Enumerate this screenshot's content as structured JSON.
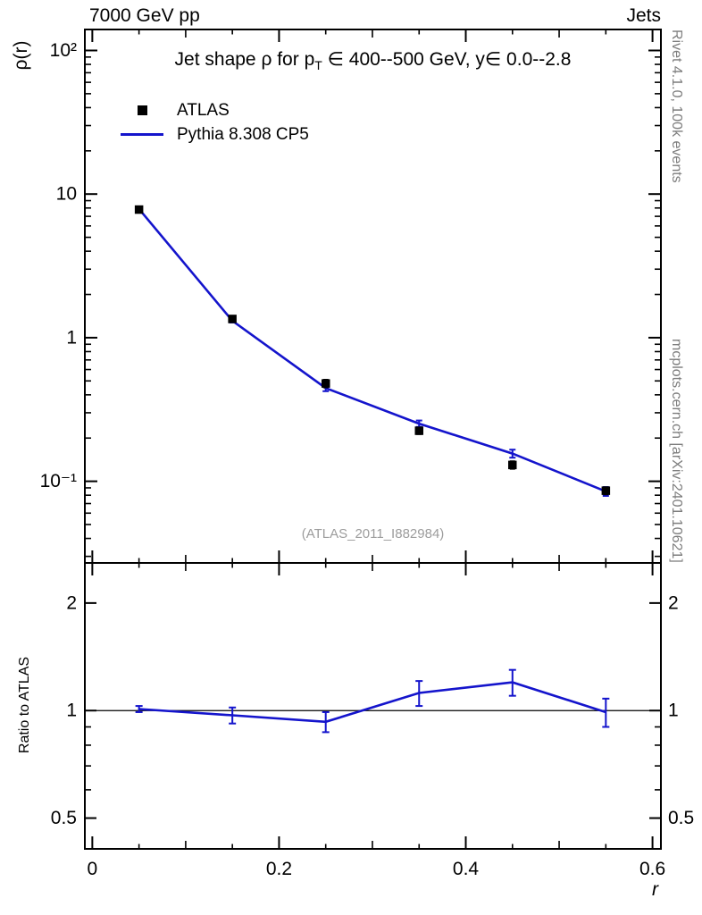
{
  "labels": {
    "top_left": "7000 GeV pp",
    "top_right": "Jets",
    "y_axis": "ρ(r)",
    "title_pre": "Jet shape ρ for p",
    "title_sub": "T",
    "title_post": " ∈ 400--500 GeV, y∈ 0.0--2.8",
    "watermark": "(ATLAS_2011_I882984)",
    "rivet_caption": "Rivet 4.1.0,  100k events",
    "mcplots_caption": "mcplots.cern.ch [arXiv:2401.10621]",
    "ratio_y_axis": "Ratio to ATLAS",
    "x_axis": "r"
  },
  "legend": [
    {
      "label": "ATLAS",
      "type": "marker",
      "color": "#000000"
    },
    {
      "label": "Pythia 8.308 CP5",
      "type": "line",
      "color": "#1414cc"
    }
  ],
  "chart_data": {
    "type": "line",
    "title": "Jet shape ρ for pT ∈ 400--500 GeV, y ∈ 0.0--2.8",
    "xlabel": "r",
    "ylabel": "ρ(r)",
    "ratio_ylabel": "Ratio to ATLAS",
    "x": [
      0.05,
      0.15,
      0.25,
      0.35,
      0.45,
      0.55
    ],
    "series": [
      {
        "name": "ATLAS",
        "render": "scatter",
        "marker": "square",
        "color": "#000000",
        "values": [
          7.8,
          1.35,
          0.48,
          0.225,
          0.13,
          0.086
        ],
        "errors": [
          0.25,
          0.05,
          0.03,
          0.012,
          0.008,
          0.005
        ]
      },
      {
        "name": "Pythia 8.308 CP5",
        "render": "line",
        "color": "#1414cc",
        "values": [
          7.88,
          1.31,
          0.446,
          0.252,
          0.156,
          0.0851
        ],
        "errors": [
          0.12,
          0.035,
          0.022,
          0.013,
          0.01,
          0.006
        ]
      }
    ],
    "ratio": {
      "name": "Pythia 8.308 CP5 / ATLAS",
      "color": "#1414cc",
      "values": [
        1.01,
        0.97,
        0.93,
        1.12,
        1.2,
        0.99
      ],
      "errors": [
        0.02,
        0.05,
        0.06,
        0.09,
        0.1,
        0.09
      ]
    },
    "axes": {
      "x": {
        "scale": "linear",
        "min": -0.008,
        "max": 0.609,
        "ticks": [
          0,
          0.2,
          0.4,
          0.6
        ],
        "tick_labels": [
          "0",
          "0.2",
          "0.4",
          "0.6"
        ],
        "minor_step": 0.05
      },
      "y_main": {
        "scale": "log",
        "min": 0.027,
        "max": 140,
        "ticks": [
          0.1,
          1,
          10,
          100
        ],
        "tick_labels": [
          "10⁻¹",
          "1",
          "10",
          "10²"
        ]
      },
      "y_ratio": {
        "scale": "log",
        "min": 0.41,
        "max": 2.59,
        "ticks": [
          0.5,
          1,
          2
        ],
        "tick_labels": [
          "0.5",
          "1",
          "2"
        ],
        "ref_line": 1
      }
    }
  }
}
